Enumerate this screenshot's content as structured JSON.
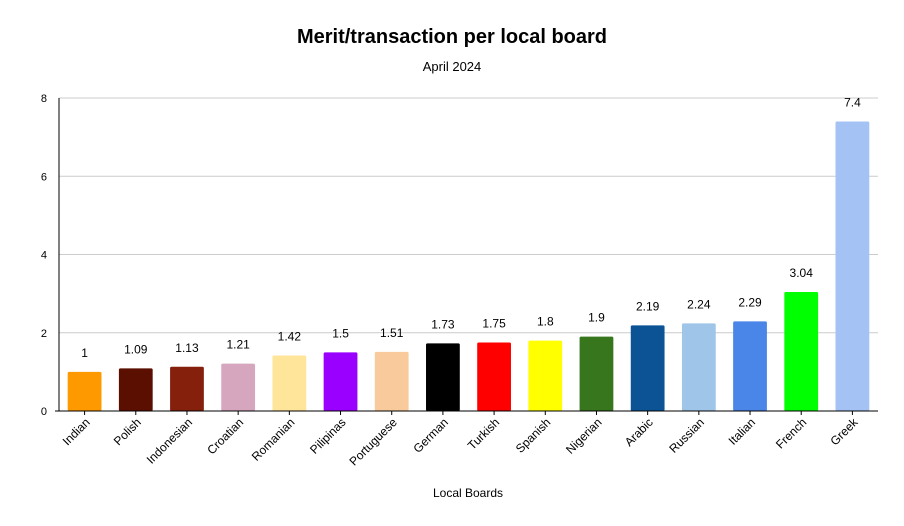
{
  "chart_data": {
    "type": "bar",
    "title": "Merit/transaction per local board",
    "subtitle": "April 2024",
    "xlabel": "Local Boards",
    "ylabel": "",
    "ylim": [
      0,
      8
    ],
    "yticks": [
      0,
      2,
      4,
      6,
      8
    ],
    "grid": true,
    "legend": "none",
    "categories": [
      "Indian",
      "Polish",
      "Indonesian",
      "Croatian",
      "Romanian",
      "Pilipinas",
      "Portuguese",
      "German",
      "Turkish",
      "Spanish",
      "Nigerian",
      "Arabic",
      "Russian",
      "Italian",
      "French",
      "Greek"
    ],
    "values": [
      1,
      1.09,
      1.13,
      1.21,
      1.42,
      1.5,
      1.51,
      1.73,
      1.75,
      1.8,
      1.9,
      2.19,
      2.24,
      2.29,
      3.04,
      7.4
    ],
    "data_labels": [
      "1",
      "1.09",
      "1.13",
      "1.21",
      "1.42",
      "1.5",
      "1.51",
      "1.73",
      "1.75",
      "1.8",
      "1.9",
      "2.19",
      "2.24",
      "2.29",
      "3.04",
      "7.4"
    ],
    "colors": [
      "#ff9900",
      "#5b0f00",
      "#85200c",
      "#d5a6bd",
      "#ffe599",
      "#9900ff",
      "#f9cb9c",
      "#000000",
      "#ff0000",
      "#ffff00",
      "#38761d",
      "#0b5394",
      "#9fc5e8",
      "#4a86e8",
      "#00ff00",
      "#a4c2f4"
    ]
  }
}
